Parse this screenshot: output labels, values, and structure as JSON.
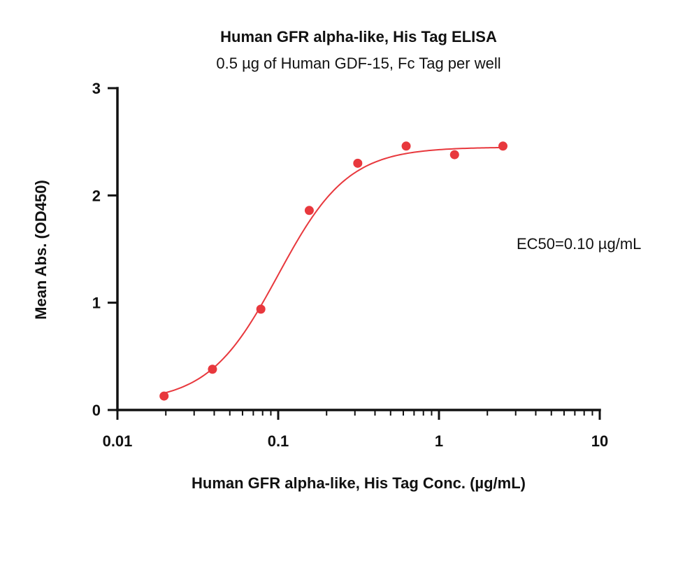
{
  "chart_data": {
    "type": "scatter",
    "title": "Human GFR alpha-like, His Tag ELISA",
    "subtitle": "0.5 µg of Human GDF-15, Fc Tag per well",
    "xlabel": "Human GFR alpha-like, His Tag Conc. (µg/mL)",
    "ylabel": "Mean Abs. (OD450)",
    "xscale": "log",
    "xlim": [
      0.01,
      10
    ],
    "ylim": [
      0,
      3
    ],
    "x_ticks": [
      "0.01",
      "0.1",
      "1",
      "10"
    ],
    "y_ticks": [
      "0",
      "1",
      "2",
      "3"
    ],
    "grid": false,
    "series": [
      {
        "color": "#e8383d",
        "x": [
          0.0195,
          0.039,
          0.078,
          0.156,
          0.3125,
          0.625,
          1.25,
          2.5
        ],
        "y": [
          0.13,
          0.38,
          0.94,
          1.86,
          2.3,
          2.46,
          2.38,
          2.46
        ]
      }
    ],
    "fit": {
      "type": "4PL",
      "bottom": 0.07,
      "top": 2.45,
      "ec50": 0.1,
      "hill": 2.0,
      "color": "#e8383d"
    },
    "annotation": "EC50=0.10 µg/mL"
  }
}
